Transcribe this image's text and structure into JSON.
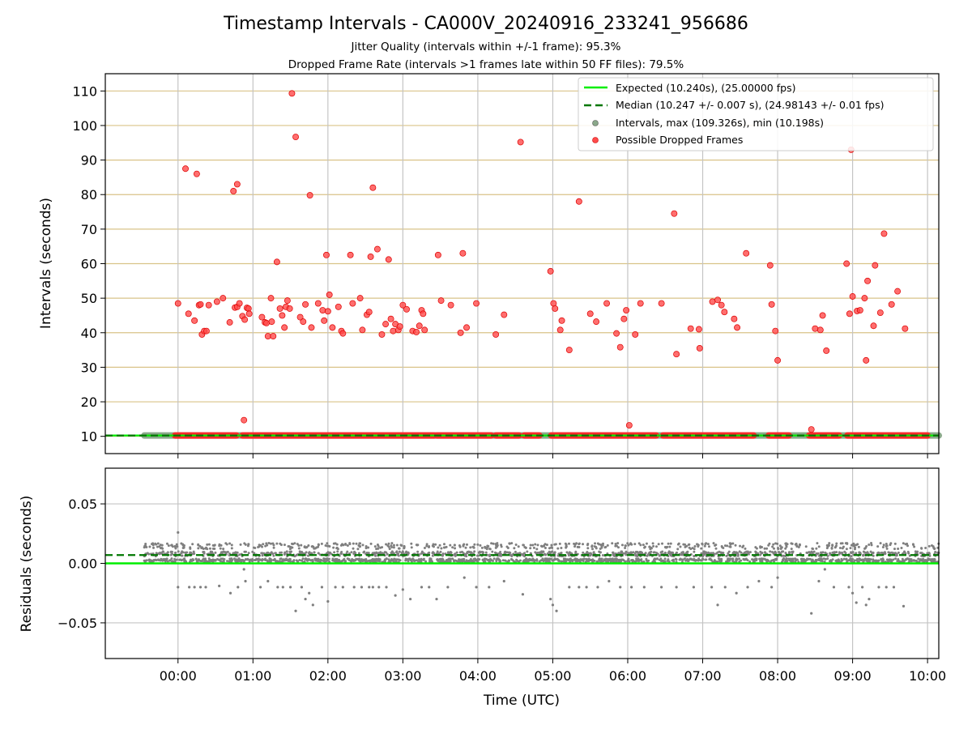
{
  "header": {
    "title": "Timestamp Intervals - CA000V_20240916_233241_956686",
    "subtitle1": "Jitter Quality (intervals within +/-1 frame): 95.3%",
    "subtitle2": "Dropped Frame Rate (intervals >1 frames late within 50 FF files): 79.5%"
  },
  "chart_data": [
    {
      "type": "scatter",
      "ylabel": "Intervals (seconds)",
      "xlabel": "",
      "x_unit": "hours relative to 00:00 UTC",
      "xlim": [
        -0.97,
        10.15
      ],
      "ylim": [
        5,
        115
      ],
      "x_ticks": [
        "00:00",
        "01:00",
        "02:00",
        "03:00",
        "04:00",
        "05:00",
        "06:00",
        "07:00",
        "08:00",
        "09:00",
        "10:00"
      ],
      "y_ticks": [
        10,
        20,
        30,
        40,
        50,
        60,
        70,
        80,
        90,
        100,
        110
      ],
      "grid": true,
      "legend_position": "top-right",
      "legend": [
        "Expected (10.240s), (25.00000 fps)",
        "Median (10.247 +/- 0.007 s), (24.98143 +/- 0.01 fps)",
        "Intervals, max (109.326s), min (10.198s)",
        "Possible Dropped Frames"
      ],
      "series": [
        {
          "name": "Expected (10.240s), (25.00000 fps)",
          "kind": "hline",
          "y": 10.24,
          "color": "#00ee00",
          "style": "solid"
        },
        {
          "name": "Median (10.247 +/- 0.007 s), (24.98143 +/- 0.01 fps)",
          "kind": "hline",
          "y": 10.247,
          "color": "#007700",
          "style": "dashed"
        },
        {
          "name": "Intervals, max (109.326s), min (10.198s)",
          "kind": "baseline",
          "y": 10.24,
          "x_range": [
            -0.45,
            10.15
          ],
          "color": "#8aa88a"
        },
        {
          "name": "Possible Dropped Frames",
          "color": "#ff2a2a",
          "baseline_ranges": [
            [
              -0.04,
              0.78
            ],
            [
              0.86,
              3.42
            ],
            [
              3.45,
              4.18
            ],
            [
              4.24,
              4.55
            ],
            [
              4.62,
              4.82
            ],
            [
              4.98,
              6.38
            ],
            [
              6.47,
              7.68
            ],
            [
              7.88,
              8.15
            ],
            [
              8.42,
              8.82
            ],
            [
              8.93,
              10.0
            ]
          ],
          "points": [
            [
              0.0,
              48.5
            ],
            [
              0.1,
              87.5
            ],
            [
              0.14,
              45.5
            ],
            [
              0.22,
              43.5
            ],
            [
              0.25,
              86.0
            ],
            [
              0.28,
              48.0
            ],
            [
              0.3,
              48.2
            ],
            [
              0.32,
              39.5
            ],
            [
              0.35,
              40.5
            ],
            [
              0.38,
              40.5
            ],
            [
              0.41,
              48.0
            ],
            [
              0.52,
              49.0
            ],
            [
              0.6,
              50.0
            ],
            [
              0.69,
              43.0
            ],
            [
              0.74,
              81.0
            ],
            [
              0.76,
              47.3
            ],
            [
              0.79,
              83.0
            ],
            [
              0.79,
              47.5
            ],
            [
              0.82,
              48.5
            ],
            [
              0.86,
              44.8
            ],
            [
              0.88,
              14.7
            ],
            [
              0.89,
              43.8
            ],
            [
              0.92,
              47.2
            ],
            [
              0.94,
              47.0
            ],
            [
              0.95,
              45.5
            ],
            [
              1.12,
              44.5
            ],
            [
              1.16,
              43.0
            ],
            [
              1.18,
              42.8
            ],
            [
              1.2,
              39.0
            ],
            [
              1.24,
              50.0
            ],
            [
              1.25,
              43.2
            ],
            [
              1.27,
              39.0
            ],
            [
              1.32,
              60.5
            ],
            [
              1.36,
              47.0
            ],
            [
              1.39,
              45.0
            ],
            [
              1.42,
              41.5
            ],
            [
              1.44,
              47.5
            ],
            [
              1.46,
              49.3
            ],
            [
              1.49,
              47.0
            ],
            [
              1.52,
              109.3
            ],
            [
              1.57,
              96.7
            ],
            [
              1.63,
              44.5
            ],
            [
              1.67,
              43.2
            ],
            [
              1.7,
              48.2
            ],
            [
              1.76,
              79.8
            ],
            [
              1.78,
              41.5
            ],
            [
              1.87,
              48.5
            ],
            [
              1.93,
              46.5
            ],
            [
              1.95,
              43.5
            ],
            [
              1.98,
              62.5
            ],
            [
              2.0,
              46.2
            ],
            [
              2.02,
              51.0
            ],
            [
              2.06,
              41.5
            ],
            [
              2.14,
              47.5
            ],
            [
              2.18,
              40.5
            ],
            [
              2.2,
              39.8
            ],
            [
              2.3,
              62.5
            ],
            [
              2.33,
              48.5
            ],
            [
              2.43,
              50.0
            ],
            [
              2.46,
              40.8
            ],
            [
              2.52,
              45.2
            ],
            [
              2.55,
              46.0
            ],
            [
              2.57,
              62.0
            ],
            [
              2.6,
              82.0
            ],
            [
              2.66,
              64.2
            ],
            [
              2.72,
              39.5
            ],
            [
              2.77,
              42.5
            ],
            [
              2.81,
              61.2
            ],
            [
              2.84,
              44.0
            ],
            [
              2.87,
              40.5
            ],
            [
              2.9,
              42.5
            ],
            [
              2.94,
              40.8
            ],
            [
              2.96,
              41.8
            ],
            [
              3.0,
              48.0
            ],
            [
              3.05,
              46.8
            ],
            [
              3.13,
              40.5
            ],
            [
              3.18,
              40.2
            ],
            [
              3.22,
              42.0
            ],
            [
              3.25,
              46.5
            ],
            [
              3.27,
              45.5
            ],
            [
              3.29,
              40.8
            ],
            [
              3.47,
              62.5
            ],
            [
              3.51,
              49.3
            ],
            [
              3.64,
              48.0
            ],
            [
              3.77,
              40.0
            ],
            [
              3.8,
              63.0
            ],
            [
              3.85,
              41.5
            ],
            [
              3.98,
              48.5
            ],
            [
              4.24,
              39.5
            ],
            [
              4.35,
              45.2
            ],
            [
              4.57,
              95.2
            ],
            [
              4.97,
              57.8
            ],
            [
              5.01,
              48.5
            ],
            [
              5.03,
              47.0
            ],
            [
              5.1,
              40.8
            ],
            [
              5.12,
              43.5
            ],
            [
              5.22,
              35.0
            ],
            [
              5.35,
              78.0
            ],
            [
              5.5,
              45.5
            ],
            [
              5.58,
              43.2
            ],
            [
              5.72,
              48.5
            ],
            [
              5.85,
              39.8
            ],
            [
              5.9,
              35.8
            ],
            [
              5.95,
              44.0
            ],
            [
              5.98,
              46.5
            ],
            [
              6.02,
              13.2
            ],
            [
              6.1,
              39.5
            ],
            [
              6.17,
              48.5
            ],
            [
              6.45,
              48.5
            ],
            [
              6.62,
              74.5
            ],
            [
              6.65,
              33.8
            ],
            [
              6.84,
              41.2
            ],
            [
              6.95,
              41.0
            ],
            [
              6.96,
              35.5
            ],
            [
              7.13,
              49.0
            ],
            [
              7.2,
              49.5
            ],
            [
              7.25,
              48.0
            ],
            [
              7.29,
              46.0
            ],
            [
              7.42,
              44.0
            ],
            [
              7.46,
              41.5
            ],
            [
              7.58,
              63.0
            ],
            [
              7.9,
              59.5
            ],
            [
              7.92,
              48.2
            ],
            [
              7.97,
              40.5
            ],
            [
              8.0,
              32.0
            ],
            [
              8.45,
              12.0
            ],
            [
              8.5,
              41.2
            ],
            [
              8.57,
              40.8
            ],
            [
              8.6,
              45.0
            ],
            [
              8.65,
              34.8
            ],
            [
              8.92,
              60.0
            ],
            [
              8.96,
              45.5
            ],
            [
              8.98,
              93.0
            ],
            [
              9.0,
              50.5
            ],
            [
              9.06,
              46.3
            ],
            [
              9.1,
              46.5
            ],
            [
              9.16,
              50.0
            ],
            [
              9.18,
              32.0
            ],
            [
              9.2,
              55.0
            ],
            [
              9.28,
              42.0
            ],
            [
              9.3,
              59.5
            ],
            [
              9.37,
              45.8
            ],
            [
              9.42,
              68.7
            ],
            [
              9.52,
              48.2
            ],
            [
              9.6,
              52.0
            ],
            [
              9.7,
              41.2
            ]
          ]
        }
      ]
    },
    {
      "type": "scatter",
      "ylabel": "Residuals (seconds)",
      "xlabel": "Time (UTC)",
      "x_unit": "hours relative to 00:00 UTC",
      "xlim": [
        -0.97,
        10.15
      ],
      "ylim": [
        -0.08,
        0.08
      ],
      "x_ticks": [
        "00:00",
        "01:00",
        "02:00",
        "03:00",
        "04:00",
        "05:00",
        "06:00",
        "07:00",
        "08:00",
        "09:00",
        "10:00"
      ],
      "y_ticks": [
        "0.05",
        "0.00",
        "−0.05"
      ],
      "y_tick_values": [
        0.05,
        0.0,
        -0.05
      ],
      "grid": true,
      "series": [
        {
          "name": "expected",
          "kind": "hline",
          "y": 0.0,
          "color": "#00ee00",
          "style": "solid"
        },
        {
          "name": "median",
          "kind": "hline",
          "y": 0.007,
          "color": "#007700",
          "style": "dashed"
        },
        {
          "name": "residuals",
          "color": "#7f7f7f",
          "x_range": [
            -0.45,
            10.15
          ],
          "dense_band": [
            0.0,
            0.016
          ],
          "points": [
            [
              0.0,
              0.026
            ],
            [
              0.0,
              -0.02
            ],
            [
              0.15,
              -0.02
            ],
            [
              0.22,
              -0.02
            ],
            [
              0.3,
              -0.02
            ],
            [
              0.37,
              -0.02
            ],
            [
              0.55,
              -0.019
            ],
            [
              0.7,
              -0.025
            ],
            [
              0.8,
              -0.02
            ],
            [
              0.9,
              -0.015
            ],
            [
              0.88,
              -0.005
            ],
            [
              1.1,
              -0.02
            ],
            [
              1.2,
              -0.015
            ],
            [
              1.33,
              -0.02
            ],
            [
              1.4,
              -0.02
            ],
            [
              1.5,
              -0.02
            ],
            [
              1.57,
              -0.04
            ],
            [
              1.65,
              -0.02
            ],
            [
              1.7,
              -0.03
            ],
            [
              1.75,
              -0.025
            ],
            [
              1.8,
              -0.035
            ],
            [
              1.92,
              -0.02
            ],
            [
              2.0,
              -0.032
            ],
            [
              2.1,
              -0.02
            ],
            [
              2.2,
              -0.02
            ],
            [
              2.35,
              -0.02
            ],
            [
              2.45,
              -0.02
            ],
            [
              2.55,
              -0.02
            ],
            [
              2.6,
              -0.02
            ],
            [
              2.68,
              -0.02
            ],
            [
              2.78,
              -0.02
            ],
            [
              2.9,
              -0.027
            ],
            [
              3.0,
              -0.022
            ],
            [
              3.1,
              -0.03
            ],
            [
              3.25,
              -0.02
            ],
            [
              3.35,
              -0.02
            ],
            [
              3.45,
              -0.03
            ],
            [
              3.6,
              -0.02
            ],
            [
              3.82,
              -0.012
            ],
            [
              3.98,
              -0.02
            ],
            [
              4.15,
              -0.02
            ],
            [
              4.35,
              -0.015
            ],
            [
              4.6,
              -0.026
            ],
            [
              4.97,
              -0.03
            ],
            [
              5.0,
              -0.035
            ],
            [
              5.05,
              -0.04
            ],
            [
              5.22,
              -0.02
            ],
            [
              5.35,
              -0.02
            ],
            [
              5.45,
              -0.02
            ],
            [
              5.6,
              -0.02
            ],
            [
              5.75,
              -0.015
            ],
            [
              5.9,
              -0.02
            ],
            [
              6.05,
              -0.02
            ],
            [
              6.22,
              -0.02
            ],
            [
              6.45,
              -0.02
            ],
            [
              6.65,
              -0.02
            ],
            [
              6.88,
              -0.02
            ],
            [
              7.12,
              -0.02
            ],
            [
              7.2,
              -0.035
            ],
            [
              7.3,
              -0.02
            ],
            [
              7.45,
              -0.025
            ],
            [
              7.6,
              -0.02
            ],
            [
              7.75,
              -0.015
            ],
            [
              7.92,
              -0.02
            ],
            [
              8.0,
              -0.012
            ],
            [
              8.45,
              -0.042
            ],
            [
              8.55,
              -0.015
            ],
            [
              8.63,
              -0.005
            ],
            [
              8.75,
              -0.02
            ],
            [
              8.95,
              -0.02
            ],
            [
              9.0,
              -0.025
            ],
            [
              9.05,
              -0.033
            ],
            [
              9.13,
              -0.02
            ],
            [
              9.18,
              -0.035
            ],
            [
              9.22,
              -0.03
            ],
            [
              9.35,
              -0.02
            ],
            [
              9.45,
              -0.02
            ],
            [
              9.55,
              -0.02
            ],
            [
              9.68,
              -0.036
            ]
          ]
        }
      ]
    }
  ]
}
